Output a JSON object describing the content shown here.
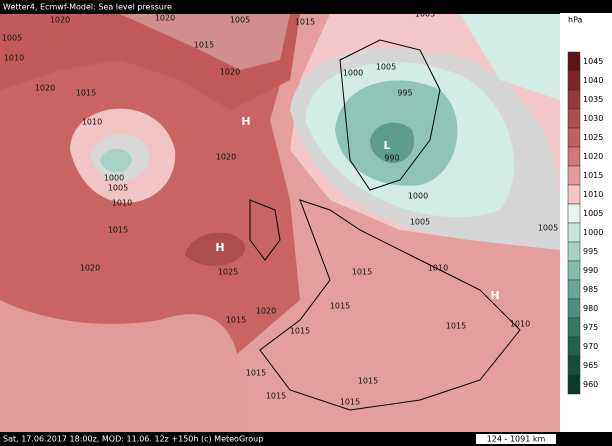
{
  "header": {
    "title": "Wetter4, Ecmwf-Model: Sea level pressure"
  },
  "footer": {
    "text": "Sat, 17.06.2017 18:00z, MOD: 11.06. 12z +150h (c) MeteoGroup",
    "scale": "124 - 1091 km"
  },
  "legend": {
    "unit": "hPa",
    "levels": [
      "1045",
      "1040",
      "1035",
      "1030",
      "1025",
      "1020",
      "1015",
      "1010",
      "1005",
      "1000",
      "995",
      "990",
      "985",
      "980",
      "975",
      "970",
      "965",
      "960"
    ],
    "colors": [
      "#5c1414",
      "#7a2626",
      "#943a3a",
      "#ad4e4e",
      "#c06060",
      "#d07878",
      "#e39c9c",
      "#f3c6c6",
      "#eaf2ef",
      "#c7e6dd",
      "#a6d2c6",
      "#85bcae",
      "#67a696",
      "#4c8f7e",
      "#357866",
      "#22614f",
      "#154d3c",
      "#0b3a2b"
    ]
  },
  "isobars": [
    "1020",
    "1005",
    "1010",
    "1020",
    "1015",
    "1010",
    "1000",
    "1005",
    "1010",
    "1015",
    "1020",
    "1025",
    "1020",
    "1015",
    "1015",
    "1020",
    "1020",
    "1000",
    "1005",
    "995",
    "990",
    "1000",
    "1005",
    "1005",
    "1010",
    "1015",
    "1015",
    "1010",
    "1015",
    "1015",
    "1015",
    "1015",
    "1015",
    "1015",
    "1005",
    "1015",
    "1020",
    "1005"
  ],
  "markers": [
    "H",
    "H",
    "H",
    "L"
  ]
}
